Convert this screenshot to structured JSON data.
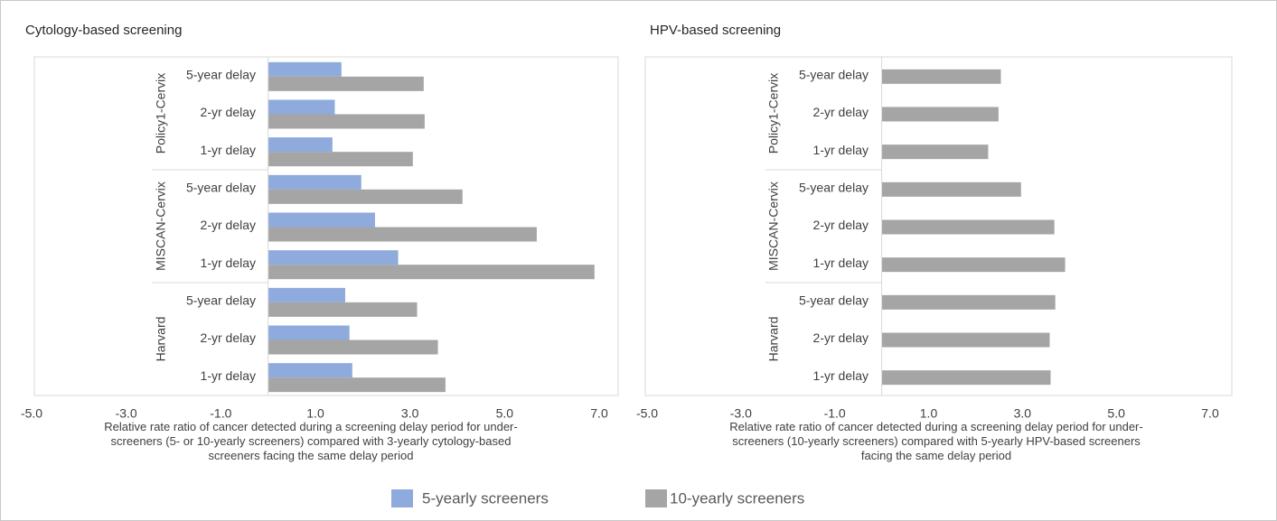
{
  "chart_data": [
    {
      "type": "bar",
      "orientation": "horizontal",
      "title": "Cytology-based screening",
      "xlabel": "Relative rate ratio of cancer detected during a screening delay period for under-screeners (5- or 10-yearly screeners) compared with 3-yearly cytology-based screeners facing the same delay period",
      "groups": [
        {
          "name": "Policy1-Cervix",
          "categories": [
            "5-year delay",
            "2-yr delay",
            "1-yr delay"
          ]
        },
        {
          "name": "MISCAN-Cervix",
          "categories": [
            "5-year delay",
            "2-yr delay",
            "1-yr delay"
          ]
        },
        {
          "name": "Harvard",
          "categories": [
            "5-year delay",
            "2-yr delay",
            "1-yr delay"
          ]
        }
      ],
      "series": [
        {
          "name": "5-yearly screeners",
          "color": "#8faadc",
          "values": [
            1.55,
            1.41,
            1.36,
            1.97,
            2.26,
            2.75,
            1.63,
            1.72,
            1.78
          ]
        },
        {
          "name": "10-yearly screeners",
          "color": "#a5a5a5",
          "values": [
            3.29,
            3.31,
            3.06,
            4.11,
            5.68,
            6.9,
            3.15,
            3.59,
            3.75
          ]
        }
      ],
      "xlim": [
        -5,
        7
      ],
      "xticks": [
        {
          "value": -5,
          "label": "-5.0"
        },
        {
          "value": -3,
          "label": "-3.0"
        },
        {
          "value": -1,
          "label": "-1.0"
        },
        {
          "value": 1,
          "label": "1.0"
        },
        {
          "value": 3,
          "label": "3.0"
        },
        {
          "value": 5,
          "label": "5.0"
        },
        {
          "value": 7,
          "label": "7.0"
        }
      ]
    },
    {
      "type": "bar",
      "orientation": "horizontal",
      "title": "HPV-based screening",
      "xlabel": "Relative rate ratio of cancer detected during a screening delay period for under-screeners (10-yearly screeners) compared with 5-yearly HPV-based screeners facing the same delay period",
      "groups": [
        {
          "name": "Policy1-Cervix",
          "categories": [
            "5-year delay",
            "2-yr delay",
            "1-yr delay"
          ]
        },
        {
          "name": "MISCAN-Cervix",
          "categories": [
            "5-year delay",
            "2-yr delay",
            "1-yr delay"
          ]
        },
        {
          "name": "Harvard",
          "categories": [
            "5-year delay",
            "2-yr delay",
            "1-yr delay"
          ]
        }
      ],
      "series": [
        {
          "color": "#a5a5a5",
          "values": [
            2.54,
            2.49,
            2.27,
            2.97,
            3.68,
            3.91,
            3.7,
            3.58,
            3.6
          ]
        }
      ],
      "xlim": [
        -5,
        7
      ],
      "xticks": [
        {
          "value": -5,
          "label": "-5.0"
        },
        {
          "value": -3,
          "label": "-3.0"
        },
        {
          "value": -1,
          "label": "-1.0"
        },
        {
          "value": 1,
          "label": "1.0"
        },
        {
          "value": 3,
          "label": "3.0"
        },
        {
          "value": 5,
          "label": "5.0"
        },
        {
          "value": 7,
          "label": "7.0"
        }
      ]
    }
  ]
}
